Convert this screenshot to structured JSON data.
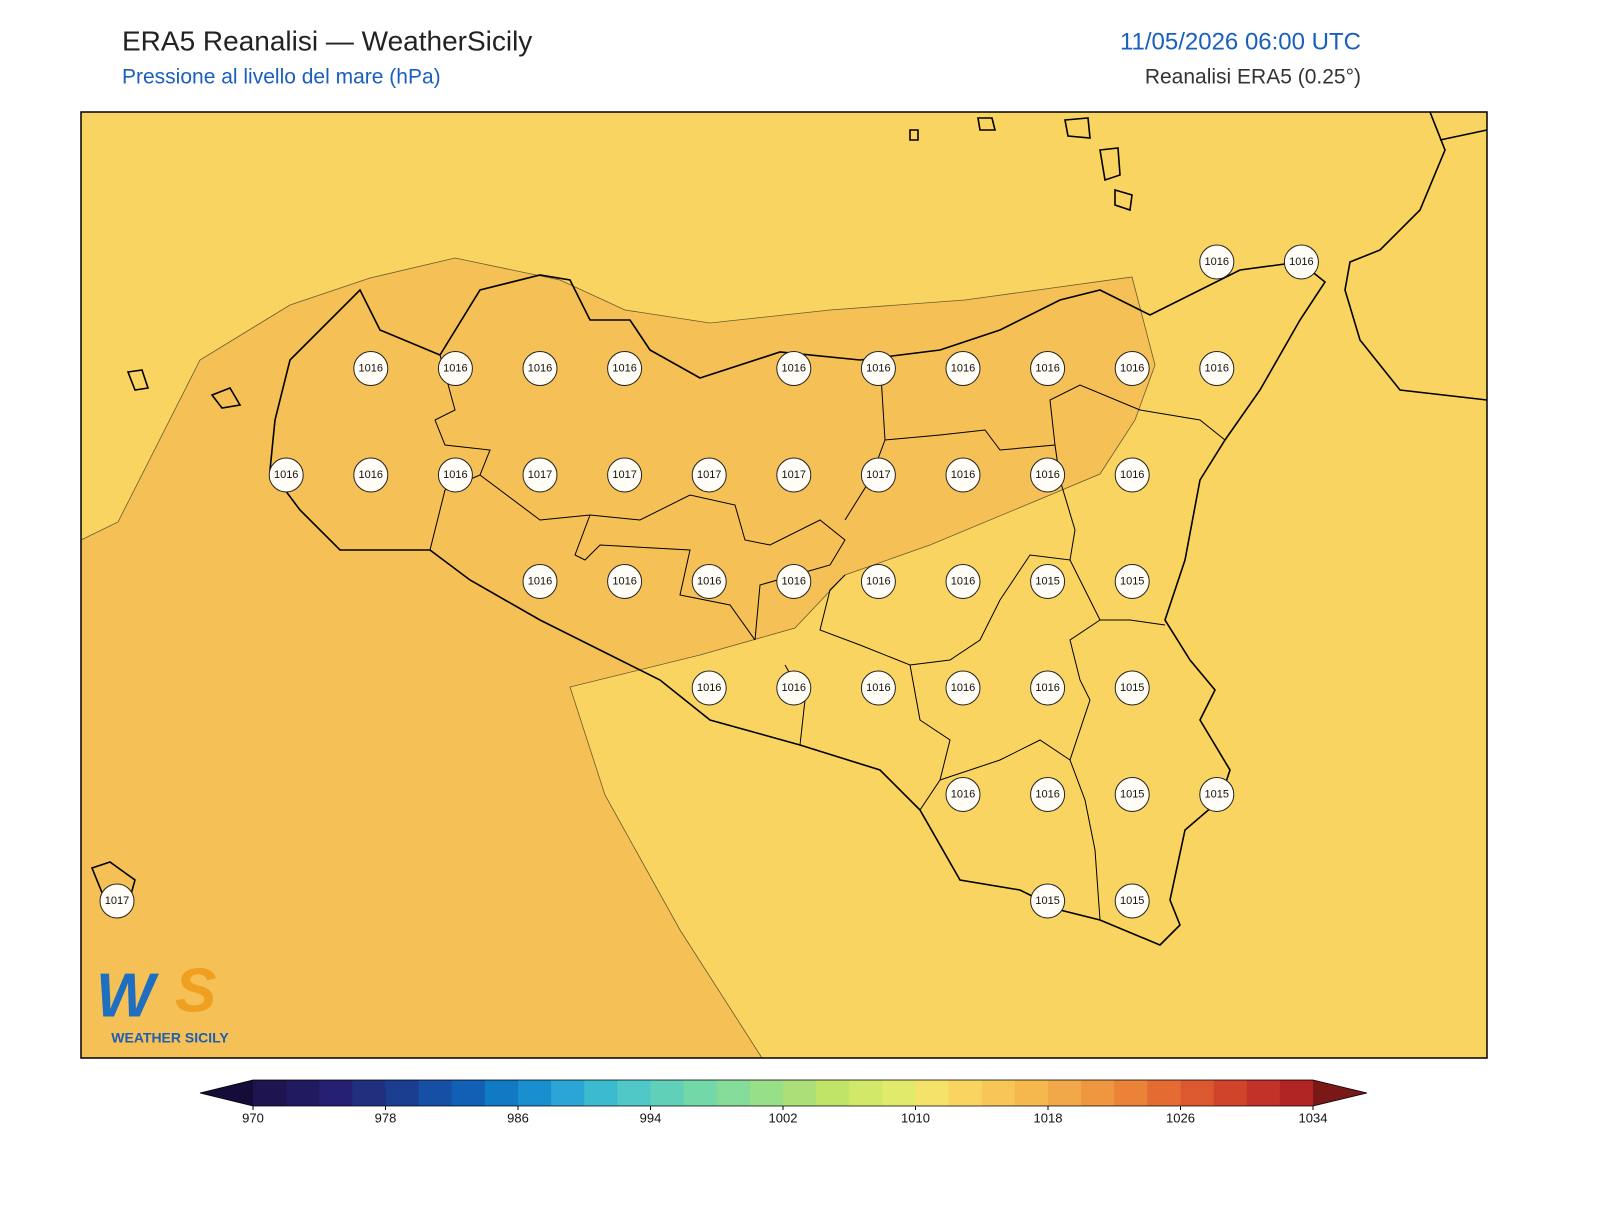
{
  "header": {
    "title": "ERA5 Reanalisi — WeatherSicily",
    "subtitle": "Pressione al livello del mare (hPa)",
    "datetime": "11/05/2026 06:00 UTC",
    "source": "Reanalisi ERA5 (0.25°)"
  },
  "map": {
    "stations": [
      [
        null,
        null,
        null,
        null,
        null,
        null,
        null,
        null,
        null,
        null,
        null,
        null,
        null,
        1016,
        1016
      ],
      [
        null,
        null,
        null,
        1016,
        1016,
        1016,
        1016,
        null,
        1016,
        1016,
        1016,
        1016,
        1016,
        1016,
        null
      ],
      [
        null,
        null,
        1016,
        1016,
        1016,
        1017,
        1017,
        1017,
        1017,
        1017,
        1016,
        1016,
        1016,
        null,
        null
      ],
      [
        null,
        null,
        null,
        null,
        null,
        1016,
        1016,
        1016,
        1016,
        1016,
        1016,
        1015,
        1015,
        null,
        null
      ],
      [
        null,
        null,
        null,
        null,
        null,
        null,
        null,
        1016,
        1016,
        1016,
        1016,
        1016,
        1015,
        null,
        null
      ],
      [
        null,
        null,
        null,
        null,
        null,
        null,
        null,
        null,
        null,
        null,
        1016,
        1016,
        1015,
        1015,
        null
      ],
      [
        1017,
        null,
        null,
        null,
        null,
        null,
        null,
        null,
        null,
        null,
        null,
        1015,
        1015,
        null,
        null
      ]
    ]
  },
  "colorbar": {
    "ticks": [
      970,
      978,
      986,
      994,
      1002,
      1010,
      1018,
      1026,
      1034
    ],
    "colors": [
      "#1e1450",
      "#221a60",
      "#241f70",
      "#20307f",
      "#1a3d90",
      "#1650a5",
      "#1260b5",
      "#107ac5",
      "#1a8fd0",
      "#2aa5d5",
      "#3cbbd0",
      "#50c8c8",
      "#60d0b8",
      "#72d8a8",
      "#84dc98",
      "#98e088",
      "#acdf78",
      "#c0e468",
      "#d2e868",
      "#e2ea6c",
      "#f4e26a",
      "#f9d460",
      "#f8c658",
      "#f4b84e",
      "#f0a848",
      "#ee9640",
      "#ea8238",
      "#e46c32",
      "#dc582e",
      "#cf442a",
      "#c23228",
      "#b02424"
    ],
    "under": "#150c3a",
    "over": "#7a1818"
  },
  "logo": {
    "text": "WEATHER SICILY"
  }
}
